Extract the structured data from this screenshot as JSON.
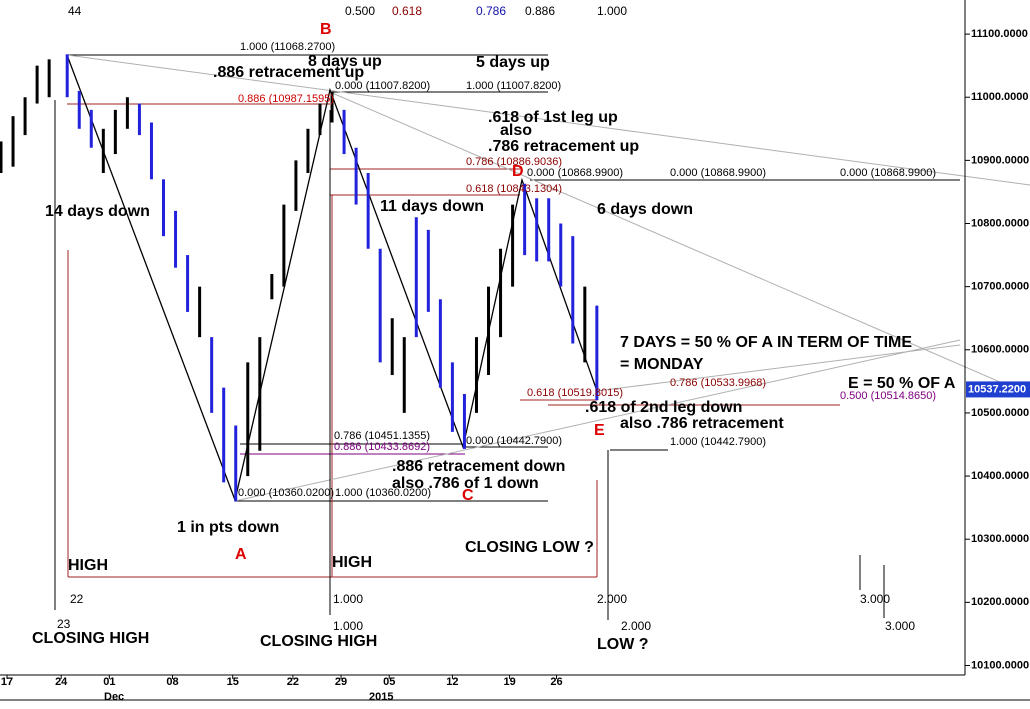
{
  "chart_data": {
    "type": "ohlc",
    "x": [
      0,
      2,
      4,
      6,
      8,
      11,
      13,
      15,
      17,
      19,
      21,
      23,
      25,
      27,
      29,
      31,
      33,
      35,
      37,
      39,
      41,
      43,
      45,
      47,
      49,
      51,
      53,
      55,
      57,
      59,
      61,
      63,
      65,
      67,
      69,
      71,
      73,
      75,
      77,
      79,
      81,
      83,
      85,
      87,
      89,
      91,
      93,
      95,
      97,
      99
    ],
    "high": [
      10930,
      10970,
      11000,
      11050,
      11060,
      11068,
      11010,
      10980,
      10950,
      10980,
      11000,
      10990,
      10960,
      10870,
      10820,
      10750,
      10700,
      10620,
      10540,
      10480,
      10580,
      10620,
      10720,
      10830,
      10900,
      10950,
      10990,
      11008,
      10980,
      10920,
      10880,
      10760,
      10650,
      10620,
      10810,
      10790,
      10680,
      10580,
      10530,
      10620,
      10700,
      10760,
      10830,
      10863,
      10840,
      10840,
      10800,
      10780,
      10700,
      10670
    ],
    "low": [
      10880,
      10890,
      10940,
      10990,
      11000,
      11000,
      10950,
      10920,
      10880,
      10910,
      10950,
      10940,
      10870,
      10780,
      10730,
      10660,
      10620,
      10500,
      10390,
      10360,
      10400,
      10440,
      10680,
      10700,
      10820,
      10880,
      10940,
      10960,
      10910,
      10830,
      10760,
      10580,
      10560,
      10500,
      10620,
      10660,
      10540,
      10470,
      10443,
      10500,
      10560,
      10620,
      10700,
      10750,
      10740,
      10740,
      10700,
      10610,
      10580,
      10520
    ],
    "bar_colors": [
      "#000000",
      "#000000",
      "#000000",
      "#000000",
      "#000000",
      "#2222dd",
      "#2222dd",
      "#2222dd",
      "#000000",
      "#000000",
      "#000000",
      "#2222dd",
      "#2222dd",
      "#2222dd",
      "#2222dd",
      "#2222dd",
      "#000000",
      "#2222dd",
      "#2222dd",
      "#2222dd",
      "#000000",
      "#000000",
      "#000000",
      "#000000",
      "#000000",
      "#000000",
      "#000000",
      "#000000",
      "#2222dd",
      "#2222dd",
      "#2222dd",
      "#2222dd",
      "#000000",
      "#000000",
      "#2222dd",
      "#2222dd",
      "#2222dd",
      "#2222dd",
      "#2222dd",
      "#000000",
      "#000000",
      "#000000",
      "#000000",
      "#2222dd",
      "#2222dd",
      "#2222dd",
      "#2222dd",
      "#2222dd",
      "#000000",
      "#2222dd"
    ],
    "xlim": [
      0,
      160
    ],
    "xticks": [
      {
        "value": 1,
        "label": "17"
      },
      {
        "value": 10,
        "label": "24"
      },
      {
        "value": 18,
        "label": "01"
      },
      {
        "value": 28.5,
        "label": "08"
      },
      {
        "value": 38.5,
        "label": "15"
      },
      {
        "value": 48.5,
        "label": "22"
      },
      {
        "value": 56.5,
        "label": "29"
      },
      {
        "value": 64.5,
        "label": "05"
      },
      {
        "value": 75,
        "label": "12"
      },
      {
        "value": 84.5,
        "label": "19"
      },
      {
        "value": 92.3,
        "label": "26"
      }
    ],
    "ylim": [
      10077,
      11154
    ],
    "yticks": [
      {
        "value": 10100,
        "label": "10100.0000"
      },
      {
        "value": 10200,
        "label": "10200.0000"
      },
      {
        "value": 10300,
        "label": "10300.0000"
      },
      {
        "value": 10400,
        "label": "10400.0000"
      },
      {
        "value": 10500,
        "label": "10500.0000"
      },
      {
        "value": 10600,
        "label": "10600.0000"
      },
      {
        "value": 10700,
        "label": "10700.0000"
      },
      {
        "value": 10800,
        "label": "10800.0000"
      },
      {
        "value": 10900,
        "label": "10900.0000"
      },
      {
        "value": 11000,
        "label": "11000.0000"
      },
      {
        "value": 11100,
        "label": "11100.0000"
      }
    ],
    "last_price": {
      "value": 10537.22,
      "label": "10537.2200"
    },
    "annotations": [
      "44",
      "B",
      "0.500",
      "0.618",
      "0.786",
      "0.886",
      "1.000",
      "1.000 (11068.2700)",
      "8 days up",
      "5 days up",
      ".886 retracement up",
      "0.000 (11007.8200)",
      "1.000 (11007.8200)",
      "0.886 (10987.1595)",
      ".618 of 1st leg up",
      "also",
      ".786 retracement up",
      "0.786 (10886.9036)",
      "0.000 (10868.9900)",
      "0.000 (10868.9900)",
      "0.000 (10868.9900)",
      "D",
      "0.618 (10843.1304)",
      "14 days down",
      "11 days down",
      "6 days down",
      "7 DAYS = 50 % OF A IN TERM OF TIME",
      "= MONDAY",
      "E = 50 % OF A",
      "0.786 (10533.9968)",
      "0.618 (10519.8015)",
      "0.500 (10514.8650)",
      ".618 of 2nd leg down",
      "also  .786 retracement",
      "E",
      "0.786 (10451.1355)",
      "0.000 (10442.7900)",
      "1.000 (10442.7900)",
      "0.886 (10433.8692)",
      ".886 retracement down",
      "also .786 of 1 down",
      "C",
      "0.000 (10360.0200)",
      "1.000 (10360.0200)",
      "1 in pts down",
      "A",
      "CLOSING LOW ?",
      "HIGH",
      "HIGH",
      "22",
      "1.000",
      "2.000",
      "3.000",
      "23",
      "1.000",
      "2.000",
      "3.000",
      "CLOSING HIGH",
      "CLOSING HIGH",
      "LOW ?",
      "Dec",
      "2015"
    ]
  }
}
